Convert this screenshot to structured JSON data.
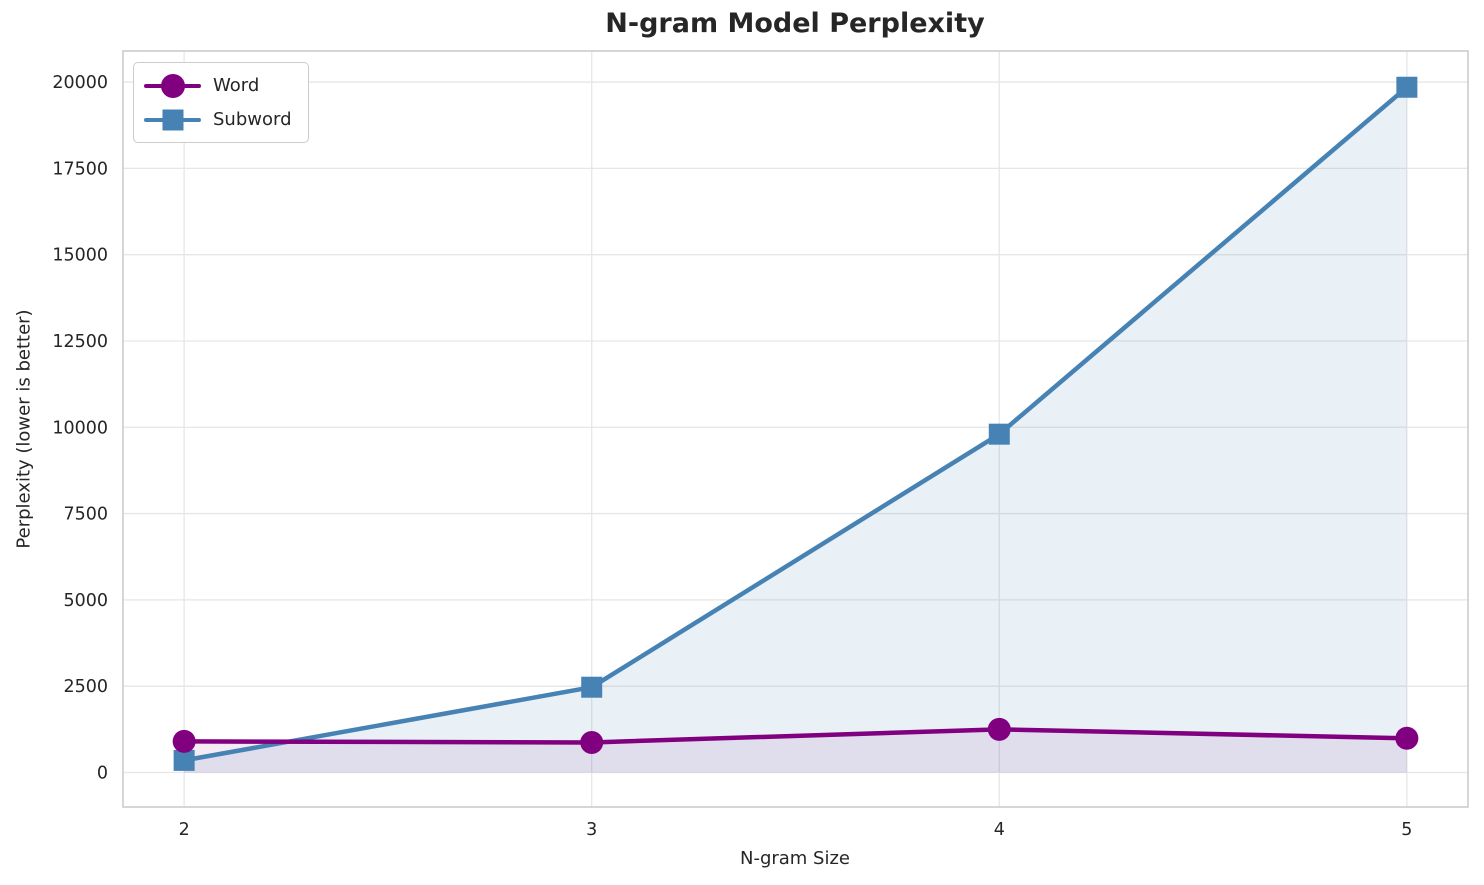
{
  "chart_data": {
    "type": "line",
    "title": "N-gram Model Perplexity",
    "xlabel": "N-gram Size",
    "ylabel": "Perplexity (lower is better)",
    "x": [
      2,
      3,
      4,
      5
    ],
    "series": [
      {
        "name": "Word",
        "color": "#800080",
        "marker": "circle",
        "values": [
          900,
          870,
          1250,
          990
        ],
        "fill_alpha": 0.08
      },
      {
        "name": "Subword",
        "color": "#4682B4",
        "marker": "square",
        "values": [
          350,
          2470,
          9800,
          19850
        ],
        "fill_alpha": 0.12
      }
    ],
    "xticks": [
      2,
      3,
      4,
      5
    ],
    "yticks": [
      0,
      2500,
      5000,
      7500,
      10000,
      12500,
      15000,
      17500,
      20000
    ],
    "xlim": [
      1.85,
      5.15
    ],
    "ylim": [
      -1000,
      20900
    ],
    "grid": true,
    "area_fill_to": 0,
    "legend_position": "upper left",
    "colors": {
      "grid": "#e6e6e6",
      "spine": "#cccccc",
      "text": "#262626",
      "background": "#ffffff"
    }
  }
}
